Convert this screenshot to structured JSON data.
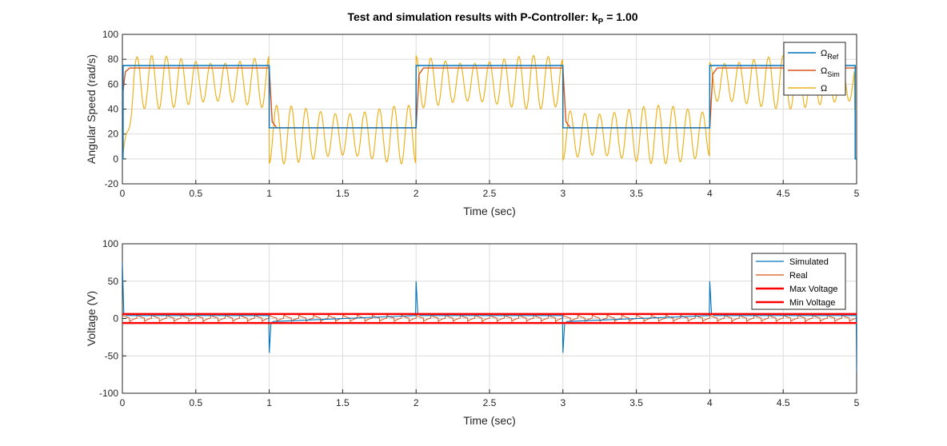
{
  "colors": {
    "ref": "#0072bd",
    "sim": "#d95319",
    "real": "#edb120",
    "limit": "#ff0000",
    "axis": "#262626",
    "grid": "#dcdcdc"
  },
  "chart_data": [
    {
      "type": "line",
      "title": "Test and simulation results with P-Controller: k",
      "title_subscript": "P",
      "title_suffix": " = 1.00",
      "xlabel": "Time (sec)",
      "ylabel": "Angular Speed (rad/s)",
      "xlim": [
        0,
        5
      ],
      "ylim": [
        -20,
        100
      ],
      "xticks": [
        "0",
        "0.5",
        "1",
        "1.5",
        "2",
        "2.5",
        "3",
        "3.5",
        "4",
        "4.5",
        "5"
      ],
      "yticks": [
        "-20",
        "0",
        "20",
        "40",
        "60",
        "80",
        "100"
      ],
      "grid": true,
      "legend_position": "top-right",
      "series": [
        {
          "name": "Ω",
          "name_subscript": "Ref",
          "color_key": "ref",
          "x": [
            0,
            0.005,
            0.005,
            1.0,
            1.0,
            2.0,
            2.0,
            3.0,
            3.0,
            4.0,
            4.0,
            4.99,
            4.99,
            5.0
          ],
          "y": [
            0,
            0,
            75,
            75,
            25,
            25,
            75,
            75,
            25,
            25,
            75,
            75,
            0,
            0
          ]
        },
        {
          "name": "Ω",
          "name_subscript": "Sim",
          "color_key": "sim",
          "x": [
            0,
            0.005,
            0.02,
            0.05,
            1.0,
            1.02,
            1.05,
            2.0,
            2.02,
            2.05,
            3.0,
            3.02,
            3.05,
            4.0,
            4.02,
            4.05,
            5.0
          ],
          "y": [
            40,
            55,
            70,
            73,
            73,
            30,
            25,
            25,
            68,
            73,
            73,
            30,
            25,
            25,
            68,
            73,
            73
          ]
        },
        {
          "name": "Ω",
          "name_subscript": "",
          "color_key": "real",
          "segments": [
            {
              "t0": 0.0,
              "t1": 1.0,
              "low": 40,
              "high": 83,
              "period": 0.1
            },
            {
              "t0": 1.0,
              "t1": 2.0,
              "low": -4,
              "high": 43,
              "period": 0.1
            },
            {
              "t0": 2.0,
              "t1": 3.0,
              "low": 40,
              "high": 83,
              "period": 0.1
            },
            {
              "t0": 3.0,
              "t1": 4.0,
              "low": -4,
              "high": 43,
              "period": 0.1
            },
            {
              "t0": 4.0,
              "t1": 5.0,
              "low": 40,
              "high": 83,
              "period": 0.1
            }
          ],
          "start_value": 0,
          "end_value": 40
        }
      ]
    },
    {
      "type": "line",
      "title": "",
      "xlabel": "Time (sec)",
      "ylabel": "Voltage (V)",
      "xlim": [
        0,
        5
      ],
      "ylim": [
        -100,
        100
      ],
      "xticks": [
        "0",
        "0.5",
        "1",
        "1.5",
        "2",
        "2.5",
        "3",
        "3.5",
        "4",
        "4.5",
        "5"
      ],
      "yticks": [
        "-100",
        "-50",
        "0",
        "50",
        "100"
      ],
      "grid": true,
      "legend_position": "top-right",
      "series": [
        {
          "name": "Simulated",
          "color_key": "ref",
          "spikes": [
            {
              "t": 0.0,
              "v": 75
            },
            {
              "t": 1.0,
              "v": -46
            },
            {
              "t": 2.0,
              "v": 50
            },
            {
              "t": 3.0,
              "v": -46
            },
            {
              "t": 4.0,
              "v": 50
            },
            {
              "t": 5.0,
              "v": -72
            }
          ]
        },
        {
          "name": "Real",
          "color_key": "sim",
          "amplitude": 6,
          "period": 0.1
        },
        {
          "name": "Max Voltage",
          "color_key": "limit",
          "value": 6
        },
        {
          "name": "Min Voltage",
          "color_key": "limit",
          "value": -6
        }
      ]
    }
  ]
}
